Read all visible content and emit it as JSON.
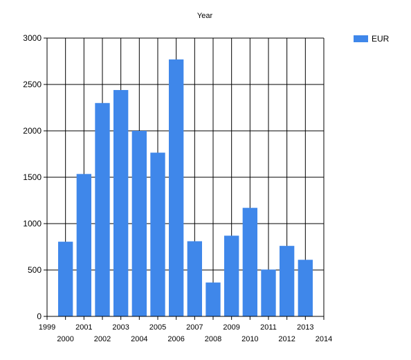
{
  "chart_data": {
    "type": "bar",
    "title": "Year",
    "xlabel": "",
    "ylabel": "",
    "x": [
      2000,
      2001,
      2002,
      2003,
      2004,
      2005,
      2006,
      2007,
      2008,
      2009,
      2010,
      2011,
      2012,
      2013
    ],
    "series": [
      {
        "name": "EUR",
        "values": [
          805,
          1535,
          2300,
          2440,
          2000,
          1765,
          2770,
          810,
          365,
          870,
          1170,
          505,
          760,
          610
        ]
      }
    ],
    "xlim": [
      1999,
      2014
    ],
    "ylim": [
      0,
      3000
    ],
    "yticks": [
      0,
      500,
      1000,
      1500,
      2000,
      2500,
      3000
    ],
    "xticks": [
      1999,
      2000,
      2001,
      2002,
      2003,
      2004,
      2005,
      2006,
      2007,
      2008,
      2009,
      2010,
      2011,
      2012,
      2013,
      2014
    ],
    "grid": true,
    "legend_position": "top-right",
    "bar_color": "#3f87ea"
  }
}
